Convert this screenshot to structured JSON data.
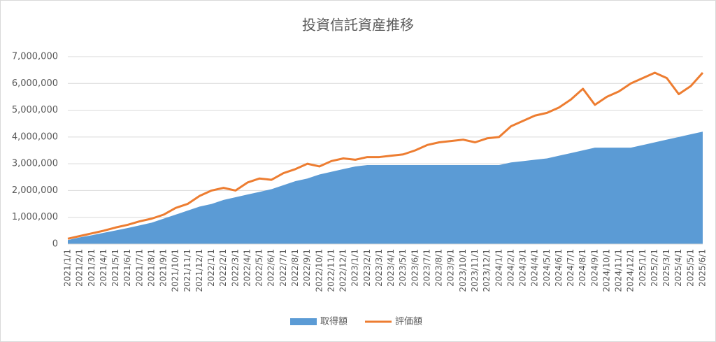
{
  "chart_data": {
    "type": "area-line",
    "title": "投資信託資産推移",
    "categories": [
      "2021/1/1",
      "2021/2/1",
      "2021/3/1",
      "2021/4/1",
      "2021/5/1",
      "2021/6/1",
      "2021/7/1",
      "2021/8/1",
      "2021/9/1",
      "2021/10/1",
      "2021/11/1",
      "2021/12/1",
      "2022/1/1",
      "2022/2/1",
      "2022/3/1",
      "2022/4/1",
      "2022/5/1",
      "2022/6/1",
      "2022/7/1",
      "2022/8/1",
      "2022/9/1",
      "2022/10/1",
      "2022/11/1",
      "2022/12/1",
      "2023/1/1",
      "2023/2/1",
      "2023/3/1",
      "2023/4/1",
      "2023/5/1",
      "2023/6/1",
      "2023/7/1",
      "2023/8/1",
      "2023/9/1",
      "2023/10/1",
      "2023/11/1",
      "2023/12/1",
      "2024/1/1",
      "2024/2/1",
      "2024/3/1",
      "2024/4/1",
      "2024/5/1",
      "2024/6/1",
      "2024/7/1",
      "2024/8/1",
      "2024/9/1",
      "2024/10/1",
      "2024/11/1",
      "2024/12/1",
      "2025/1/1",
      "2025/2/1",
      "2025/3/1",
      "2025/4/1",
      "2025/5/1",
      "2025/6/1"
    ],
    "series": [
      {
        "name": "取得額",
        "kind": "area",
        "color": "#5b9bd5",
        "values": [
          150000,
          250000,
          330000,
          420000,
          510000,
          600000,
          700000,
          800000,
          950000,
          1100000,
          1250000,
          1400000,
          1500000,
          1650000,
          1750000,
          1850000,
          1950000,
          2050000,
          2200000,
          2350000,
          2450000,
          2600000,
          2700000,
          2800000,
          2900000,
          2950000,
          2950000,
          2950000,
          2950000,
          2950000,
          2950000,
          2950000,
          2950000,
          2950000,
          2950000,
          2950000,
          2950000,
          3050000,
          3100000,
          3150000,
          3200000,
          3300000,
          3400000,
          3500000,
          3600000,
          3600000,
          3600000,
          3600000,
          3700000,
          3800000,
          3900000,
          4000000,
          4100000,
          4200000
        ]
      },
      {
        "name": "評価額",
        "kind": "line",
        "color": "#ed7d31",
        "values": [
          200000,
          300000,
          400000,
          500000,
          620000,
          720000,
          850000,
          950000,
          1100000,
          1350000,
          1500000,
          1800000,
          2000000,
          2100000,
          2000000,
          2300000,
          2450000,
          2400000,
          2650000,
          2800000,
          3000000,
          2900000,
          3100000,
          3200000,
          3150000,
          3250000,
          3250000,
          3300000,
          3350000,
          3500000,
          3700000,
          3800000,
          3850000,
          3900000,
          3800000,
          3950000,
          4000000,
          4400000,
          4600000,
          4800000,
          4900000,
          5100000,
          5400000,
          5800000,
          5200000,
          5500000,
          5700000,
          6000000,
          6200000,
          6400000,
          6200000,
          5600000,
          5900000,
          6400000
        ]
      }
    ],
    "ylim": [
      0,
      7000000
    ],
    "yticks": [
      0,
      {
        "value": 1000000,
        "label": "1,000,000"
      },
      {
        "value": 2000000,
        "label": "2,000,000"
      },
      {
        "value": 3000000,
        "label": "3,000,000"
      },
      {
        "value": 4000000,
        "label": "4,000,000"
      },
      {
        "value": 5000000,
        "label": "5,000,000"
      },
      {
        "value": 6000000,
        "label": "6,000,000"
      },
      {
        "value": 7000000,
        "label": "7,000,000"
      }
    ],
    "grid": true
  }
}
